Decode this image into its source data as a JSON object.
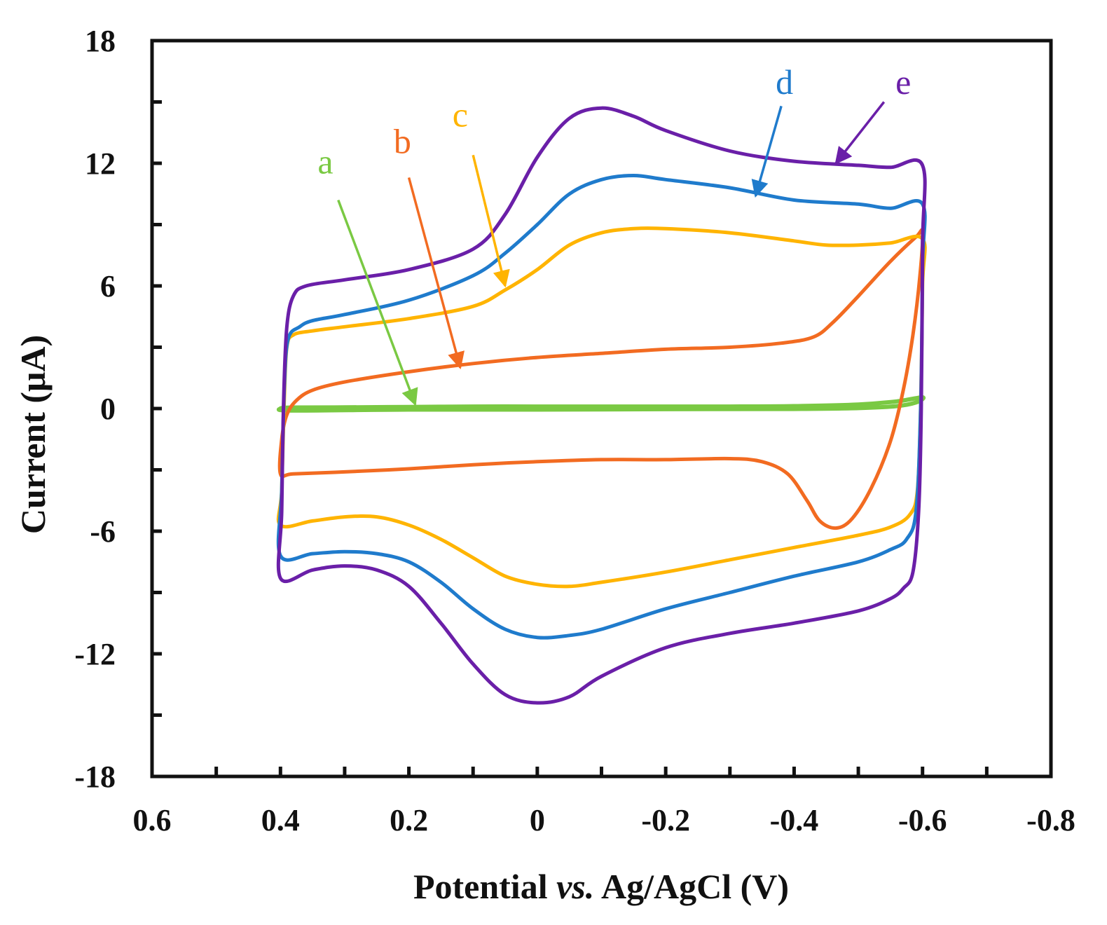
{
  "chart_data": {
    "type": "line",
    "title": "",
    "xlabel": {
      "before": "Potential ",
      "italic": "vs.",
      "after": " Ag/AgCl (V)"
    },
    "ylabel": "Current (μA)",
    "xlim": [
      0.6,
      -0.8
    ],
    "ylim": [
      -18,
      18
    ],
    "x_ticks": [
      0.6,
      0.4,
      0.2,
      0,
      -0.2,
      -0.4,
      -0.6,
      -0.8
    ],
    "x_tick_labels": [
      "0.6",
      "0.4",
      "0.2",
      "0",
      "-0.2",
      "-0.4",
      "-0.6",
      "-0.8"
    ],
    "y_ticks": [
      18,
      12,
      6,
      0,
      -6,
      -12,
      -18
    ],
    "y_tick_labels": [
      "18",
      "12",
      "6",
      "0",
      "-6",
      "-12",
      "-18"
    ],
    "grid": false,
    "series": [
      {
        "name": "a",
        "color": "#7ac943",
        "label_pos": [
          0.33,
          11.5
        ],
        "arrow_from": [
          0.31,
          10.2
        ],
        "arrow_to": [
          0.19,
          0.2
        ],
        "points": [
          [
            0.4,
            0.0
          ],
          [
            0.38,
            0.05
          ],
          [
            0.3,
            0.06
          ],
          [
            0.2,
            0.08
          ],
          [
            0.1,
            0.1
          ],
          [
            0,
            0.1
          ],
          [
            -0.1,
            0.1
          ],
          [
            -0.2,
            0.1
          ],
          [
            -0.3,
            0.1
          ],
          [
            -0.4,
            0.12
          ],
          [
            -0.5,
            0.2
          ],
          [
            -0.56,
            0.35
          ],
          [
            -0.6,
            0.55
          ],
          [
            -0.59,
            0.3
          ],
          [
            -0.56,
            0.12
          ],
          [
            -0.5,
            0.02
          ],
          [
            -0.4,
            -0.02
          ],
          [
            -0.2,
            -0.03
          ],
          [
            0,
            -0.05
          ],
          [
            0.2,
            -0.05
          ],
          [
            0.38,
            -0.1
          ],
          [
            0.4,
            0.0
          ]
        ]
      },
      {
        "name": "b",
        "color": "#f26b21",
        "label_pos": [
          0.21,
          12.5
        ],
        "arrow_from": [
          0.2,
          11.3
        ],
        "arrow_to": [
          0.12,
          2.0
        ],
        "points": [
          [
            0.4,
            -3.2
          ],
          [
            0.398,
            -1.5
          ],
          [
            0.39,
            -0.3
          ],
          [
            0.375,
            0.4
          ],
          [
            0.35,
            0.9
          ],
          [
            0.3,
            1.3
          ],
          [
            0.2,
            1.8
          ],
          [
            0.1,
            2.2
          ],
          [
            0,
            2.5
          ],
          [
            -0.1,
            2.7
          ],
          [
            -0.2,
            2.9
          ],
          [
            -0.3,
            3.0
          ],
          [
            -0.38,
            3.2
          ],
          [
            -0.43,
            3.5
          ],
          [
            -0.46,
            4.2
          ],
          [
            -0.5,
            5.5
          ],
          [
            -0.55,
            7.2
          ],
          [
            -0.59,
            8.4
          ],
          [
            -0.6,
            8.6
          ],
          [
            -0.596,
            6.5
          ],
          [
            -0.585,
            3.6
          ],
          [
            -0.57,
            0.9
          ],
          [
            -0.55,
            -1.6
          ],
          [
            -0.52,
            -3.9
          ],
          [
            -0.49,
            -5.4
          ],
          [
            -0.465,
            -5.85
          ],
          [
            -0.44,
            -5.5
          ],
          [
            -0.42,
            -4.5
          ],
          [
            -0.39,
            -3.2
          ],
          [
            -0.35,
            -2.6
          ],
          [
            -0.3,
            -2.45
          ],
          [
            -0.2,
            -2.5
          ],
          [
            -0.1,
            -2.5
          ],
          [
            0,
            -2.6
          ],
          [
            0.1,
            -2.75
          ],
          [
            0.2,
            -2.95
          ],
          [
            0.3,
            -3.1
          ],
          [
            0.38,
            -3.2
          ],
          [
            0.4,
            -3.2
          ]
        ]
      },
      {
        "name": "c",
        "color": "#ffb400",
        "label_pos": [
          0.12,
          13.8
        ],
        "arrow_from": [
          0.1,
          12.4
        ],
        "arrow_to": [
          0.05,
          6.0
        ],
        "points": [
          [
            0.4,
            -5.7
          ],
          [
            0.398,
            -4.0
          ],
          [
            0.394,
            0.5
          ],
          [
            0.39,
            3.0
          ],
          [
            0.38,
            3.6
          ],
          [
            0.35,
            3.8
          ],
          [
            0.3,
            4.0
          ],
          [
            0.2,
            4.4
          ],
          [
            0.1,
            5.0
          ],
          [
            0.05,
            5.8
          ],
          [
            0,
            6.8
          ],
          [
            -0.05,
            8.0
          ],
          [
            -0.1,
            8.6
          ],
          [
            -0.15,
            8.8
          ],
          [
            -0.2,
            8.8
          ],
          [
            -0.3,
            8.6
          ],
          [
            -0.4,
            8.2
          ],
          [
            -0.45,
            8.0
          ],
          [
            -0.5,
            8.0
          ],
          [
            -0.55,
            8.1
          ],
          [
            -0.6,
            8.3
          ],
          [
            -0.6,
            6.0
          ],
          [
            -0.597,
            0.0
          ],
          [
            -0.592,
            -4.0
          ],
          [
            -0.58,
            -5.2
          ],
          [
            -0.55,
            -5.8
          ],
          [
            -0.5,
            -6.2
          ],
          [
            -0.4,
            -6.8
          ],
          [
            -0.3,
            -7.4
          ],
          [
            -0.2,
            -8.0
          ],
          [
            -0.1,
            -8.5
          ],
          [
            -0.05,
            -8.7
          ],
          [
            0,
            -8.6
          ],
          [
            0.05,
            -8.2
          ],
          [
            0.1,
            -7.3
          ],
          [
            0.15,
            -6.4
          ],
          [
            0.2,
            -5.7
          ],
          [
            0.25,
            -5.3
          ],
          [
            0.3,
            -5.3
          ],
          [
            0.35,
            -5.5
          ],
          [
            0.4,
            -5.7
          ]
        ]
      },
      {
        "name": "d",
        "color": "#1f7bcc",
        "label_pos": [
          -0.385,
          15.4
        ],
        "arrow_from": [
          -0.38,
          14.8
        ],
        "arrow_to": [
          -0.34,
          10.4
        ],
        "points": [
          [
            0.4,
            -7.2
          ],
          [
            0.398,
            -4.0
          ],
          [
            0.394,
            1.0
          ],
          [
            0.388,
            3.4
          ],
          [
            0.37,
            4.0
          ],
          [
            0.35,
            4.3
          ],
          [
            0.3,
            4.6
          ],
          [
            0.2,
            5.3
          ],
          [
            0.1,
            6.5
          ],
          [
            0.05,
            7.6
          ],
          [
            0,
            9.0
          ],
          [
            -0.05,
            10.5
          ],
          [
            -0.1,
            11.2
          ],
          [
            -0.15,
            11.4
          ],
          [
            -0.2,
            11.2
          ],
          [
            -0.3,
            10.8
          ],
          [
            -0.4,
            10.2
          ],
          [
            -0.5,
            10.0
          ],
          [
            -0.55,
            9.8
          ],
          [
            -0.6,
            10.0
          ],
          [
            -0.6,
            7.0
          ],
          [
            -0.597,
            0.0
          ],
          [
            -0.59,
            -5.0
          ],
          [
            -0.575,
            -6.4
          ],
          [
            -0.55,
            -6.9
          ],
          [
            -0.5,
            -7.5
          ],
          [
            -0.4,
            -8.2
          ],
          [
            -0.3,
            -9.0
          ],
          [
            -0.2,
            -9.8
          ],
          [
            -0.1,
            -10.8
          ],
          [
            -0.05,
            -11.1
          ],
          [
            0,
            -11.2
          ],
          [
            0.05,
            -10.8
          ],
          [
            0.1,
            -9.8
          ],
          [
            0.15,
            -8.5
          ],
          [
            0.2,
            -7.5
          ],
          [
            0.25,
            -7.1
          ],
          [
            0.3,
            -7.0
          ],
          [
            0.35,
            -7.1
          ],
          [
            0.4,
            -7.2
          ]
        ]
      },
      {
        "name": "e",
        "color": "#6a1fa8",
        "label_pos": [
          -0.57,
          15.4
        ],
        "arrow_from": [
          -0.54,
          15.0
        ],
        "arrow_to": [
          -0.465,
          12.0
        ],
        "points": [
          [
            0.4,
            -8.3
          ],
          [
            0.398,
            -5.0
          ],
          [
            0.395,
            0.5
          ],
          [
            0.39,
            4.0
          ],
          [
            0.38,
            5.5
          ],
          [
            0.36,
            6.0
          ],
          [
            0.3,
            6.3
          ],
          [
            0.2,
            6.8
          ],
          [
            0.1,
            7.8
          ],
          [
            0.05,
            9.5
          ],
          [
            0,
            12.3
          ],
          [
            -0.05,
            14.2
          ],
          [
            -0.1,
            14.7
          ],
          [
            -0.15,
            14.3
          ],
          [
            -0.2,
            13.6
          ],
          [
            -0.3,
            12.6
          ],
          [
            -0.4,
            12.1
          ],
          [
            -0.5,
            11.9
          ],
          [
            -0.55,
            11.8
          ],
          [
            -0.6,
            11.9
          ],
          [
            -0.6,
            8.0
          ],
          [
            -0.598,
            0.0
          ],
          [
            -0.594,
            -5.0
          ],
          [
            -0.585,
            -8.0
          ],
          [
            -0.57,
            -8.8
          ],
          [
            -0.55,
            -9.3
          ],
          [
            -0.5,
            -9.9
          ],
          [
            -0.4,
            -10.5
          ],
          [
            -0.3,
            -11.0
          ],
          [
            -0.2,
            -11.7
          ],
          [
            -0.1,
            -13.1
          ],
          [
            -0.05,
            -14.1
          ],
          [
            0,
            -14.4
          ],
          [
            0.05,
            -14.0
          ],
          [
            0.1,
            -12.5
          ],
          [
            0.15,
            -10.5
          ],
          [
            0.2,
            -8.7
          ],
          [
            0.25,
            -7.9
          ],
          [
            0.3,
            -7.7
          ],
          [
            0.35,
            -7.9
          ],
          [
            0.4,
            -8.3
          ]
        ]
      }
    ]
  }
}
